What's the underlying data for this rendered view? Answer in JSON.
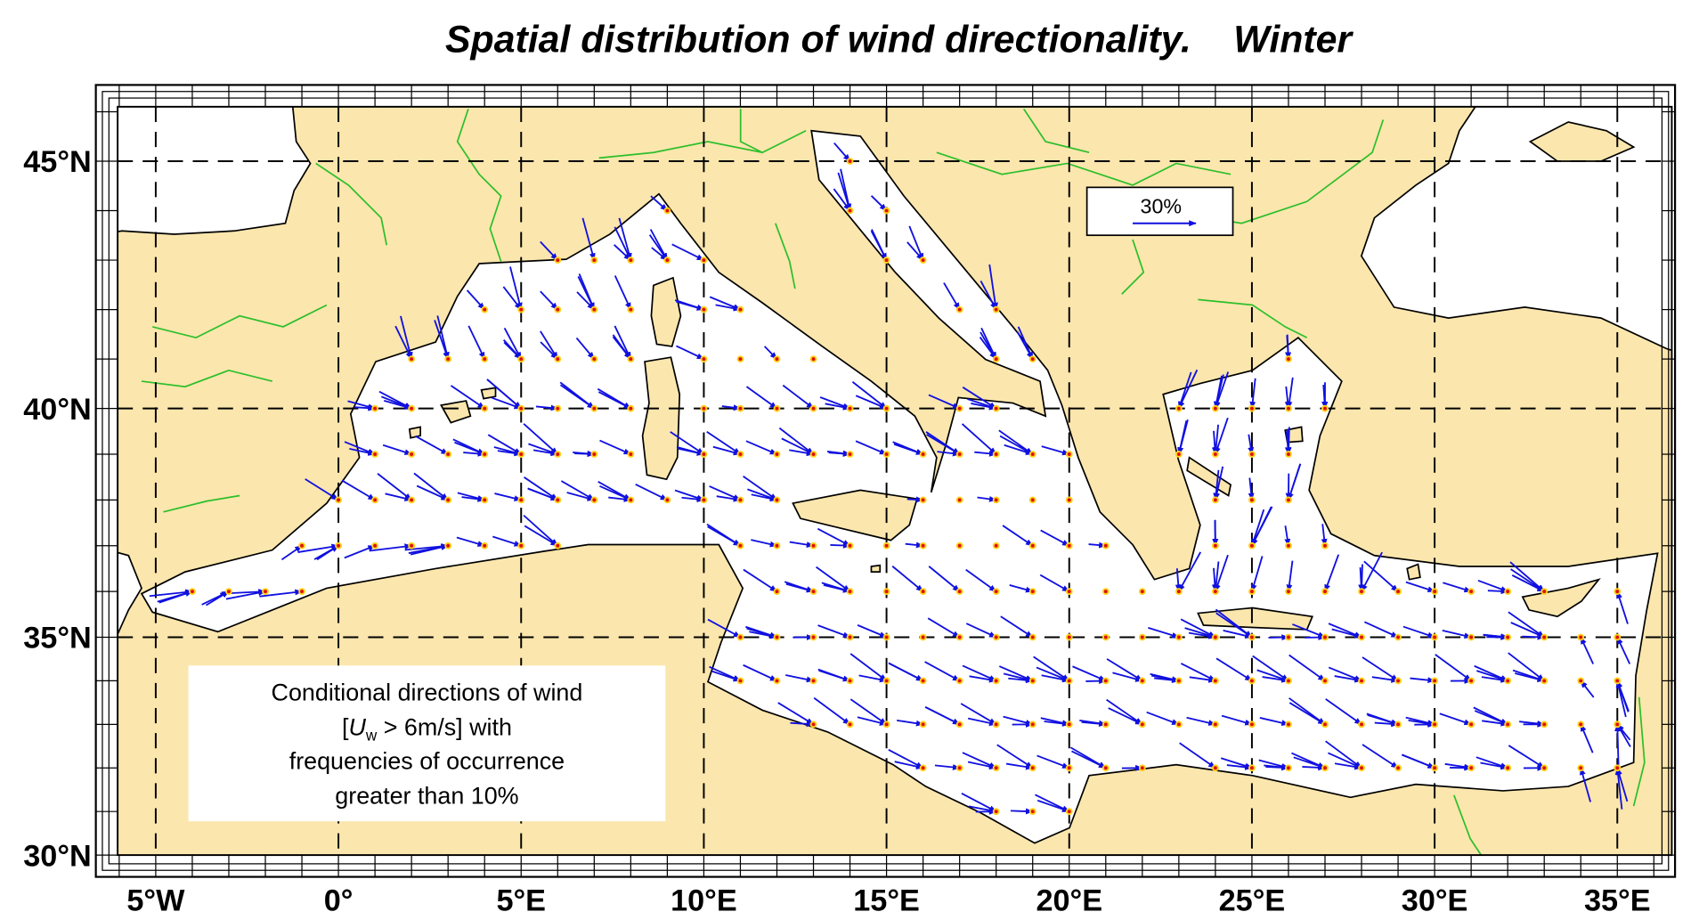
{
  "title": "Spatial distribution of wind directionality.    Winter",
  "latitude_labels": [
    "45°N",
    "40°N",
    "35°N",
    "30°N"
  ],
  "longitude_labels": [
    "5°W",
    "0°",
    "5°E",
    "10°E",
    "15°E",
    "20°E",
    "25°E",
    "30°E",
    "35°E"
  ],
  "scale_label": "30%",
  "note": {
    "line1": "Conditional directions of wind",
    "line2_open": "[",
    "line2_symbol": "U",
    "line2_subscript": "w",
    "line2_rest": " > 6m/s] with",
    "line3": "frequencies of occurrence",
    "line4": "greater than 10%"
  }
}
